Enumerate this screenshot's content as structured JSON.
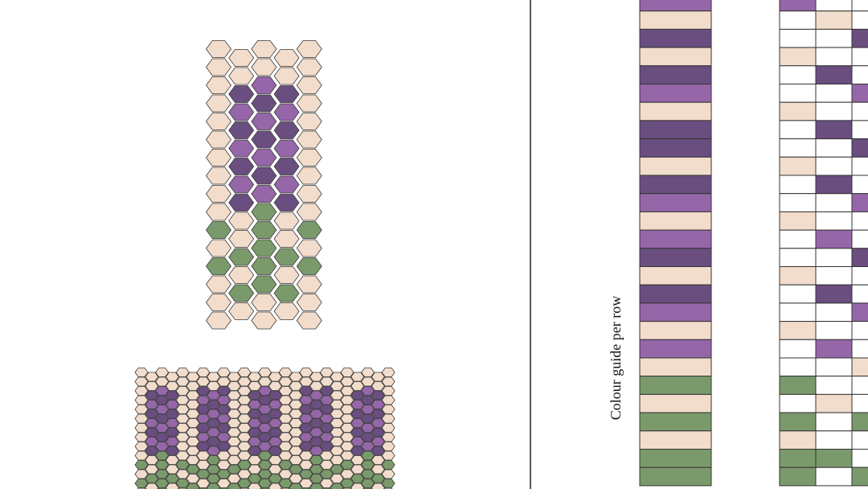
{
  "guide_label": "Colour guide per row"
}
